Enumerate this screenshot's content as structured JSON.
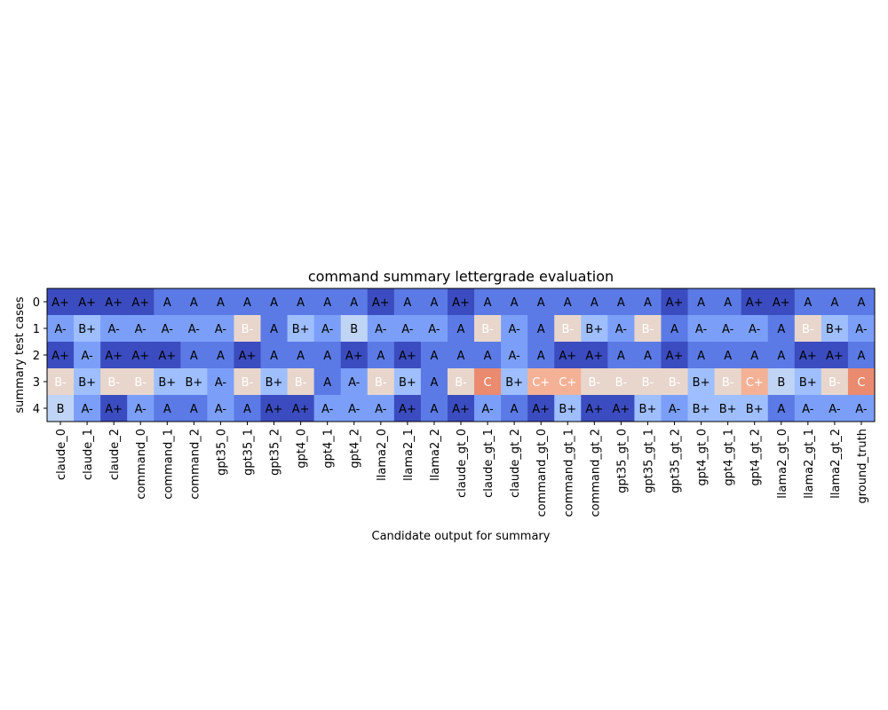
{
  "chart_data": {
    "type": "heatmap",
    "title": "command summary lettergrade evaluation",
    "xlabel": "Candidate output for summary",
    "ylabel": "summary test cases",
    "columns": [
      "claude_0",
      "claude_1",
      "claude_2",
      "command_0",
      "command_1",
      "command_2",
      "gpt35_0",
      "gpt35_1",
      "gpt35_2",
      "gpt4_0",
      "gpt4_1",
      "gpt4_2",
      "llama2_0",
      "llama2_1",
      "llama2_2",
      "claude_gt_0",
      "claude_gt_1",
      "claude_gt_2",
      "command_gt_0",
      "command_gt_1",
      "command_gt_2",
      "gpt35_gt_0",
      "gpt35_gt_1",
      "gpt35_gt_2",
      "gpt4_gt_0",
      "gpt4_gt_1",
      "gpt4_gt_2",
      "llama2_gt_0",
      "llama2_gt_1",
      "llama2_gt_2",
      "ground_truth"
    ],
    "rows": [
      "0",
      "1",
      "2",
      "3",
      "4"
    ],
    "grades": [
      [
        "A+",
        "A+",
        "A+",
        "A+",
        "A",
        "A",
        "A",
        "A",
        "A",
        "A",
        "A",
        "A",
        "A+",
        "A",
        "A",
        "A+",
        "A",
        "A",
        "A",
        "A",
        "A",
        "A",
        "A",
        "A+",
        "A",
        "A",
        "A+",
        "A+",
        "A",
        "A",
        "A"
      ],
      [
        "A-",
        "B+",
        "A-",
        "A-",
        "A-",
        "A-",
        "A-",
        "B-",
        "A",
        "B+",
        "A-",
        "B",
        "A-",
        "A-",
        "A-",
        "A",
        "B-",
        "A-",
        "A",
        "B-",
        "B+",
        "A-",
        "B-",
        "A",
        "A-",
        "A-",
        "A-",
        "A",
        "B-",
        "B+",
        "A-"
      ],
      [
        "A+",
        "A-",
        "A+",
        "A+",
        "A+",
        "A",
        "A",
        "A+",
        "A",
        "A",
        "A",
        "A+",
        "A",
        "A+",
        "A",
        "A",
        "A",
        "A-",
        "A",
        "A+",
        "A+",
        "A",
        "A",
        "A+",
        "A",
        "A",
        "A",
        "A",
        "A+",
        "A+",
        "A"
      ],
      [
        "B-",
        "B+",
        "B-",
        "B-",
        "B+",
        "B+",
        "A-",
        "B-",
        "B+",
        "B-",
        "A",
        "A-",
        "B-",
        "B+",
        "A",
        "B-",
        "C",
        "B+",
        "C+",
        "C+",
        "B-",
        "B-",
        "B-",
        "B-",
        "B+",
        "B-",
        "C+",
        "B",
        "B+",
        "B-",
        "C"
      ],
      [
        "B",
        "A-",
        "A+",
        "A-",
        "A",
        "A",
        "A-",
        "A",
        "A+",
        "A+",
        "A-",
        "A-",
        "A-",
        "A+",
        "A",
        "A+",
        "A-",
        "A",
        "A+",
        "B+",
        "A+",
        "A+",
        "B+",
        "A-",
        "B+",
        "B+",
        "B+",
        "A",
        "A-",
        "A-",
        "A-"
      ]
    ],
    "grade_colors": {
      "A+": "#3b4cc0",
      "A": "#5b7ae5",
      "A-": "#7b9ff9",
      "B+": "#9ebeff",
      "B": "#c0d4f5",
      "B-": "#e8d6cc",
      "C+": "#f4b196",
      "C": "#ea8a6f"
    },
    "light_text_grades": [
      "B-",
      "C+",
      "C"
    ]
  }
}
